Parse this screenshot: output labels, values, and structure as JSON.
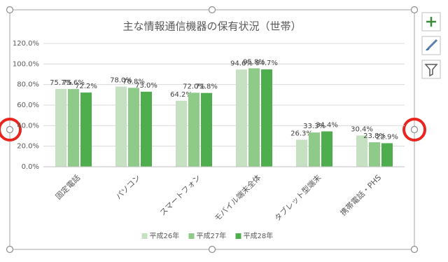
{
  "chart_data": {
    "type": "bar",
    "title": "主な情報通信機器の保有状況（世帯）",
    "categories": [
      "固定電話",
      "パソコン",
      "スマートフォン",
      "モバイル端末全体",
      "タブレット型端末",
      "携帯電話・PHS"
    ],
    "series": [
      {
        "name": "平成26年",
        "color": "#c6e0c2",
        "values": [
          75.7,
          78.0,
          64.2,
          94.6,
          26.3,
          30.4
        ],
        "value_labels": [
          "75.7%",
          "78.0%",
          "64.2%",
          "94.6%",
          "26.3%",
          "30.4%"
        ]
      },
      {
        "name": "平成27年",
        "color": "#8ecb89",
        "values": [
          75.6,
          76.8,
          72.0,
          95.8,
          33.3,
          23.8
        ],
        "value_labels": [
          "75.6%",
          "76.8%",
          "72.0%",
          "95.8%",
          "33.3%",
          "23.8%"
        ]
      },
      {
        "name": "平成28年",
        "color": "#4eae4e",
        "values": [
          72.2,
          73.0,
          71.8,
          94.7,
          34.4,
          22.9
        ],
        "value_labels": [
          "72.2%",
          "73.0%",
          "71.8%",
          "94.7%",
          "34.4%",
          "22.9%"
        ]
      }
    ],
    "ylim": [
      0,
      120
    ],
    "yticks": [
      {
        "value": 0,
        "label": "0.0%"
      },
      {
        "value": 20,
        "label": "20.0%"
      },
      {
        "value": 40,
        "label": "40.0%"
      },
      {
        "value": 60,
        "label": "60.0%"
      },
      {
        "value": 80,
        "label": "80.0%"
      },
      {
        "value": 100,
        "label": "100.0%"
      },
      {
        "value": 120,
        "label": "120.0%"
      }
    ],
    "grid": true,
    "legend": "bottom"
  }
}
